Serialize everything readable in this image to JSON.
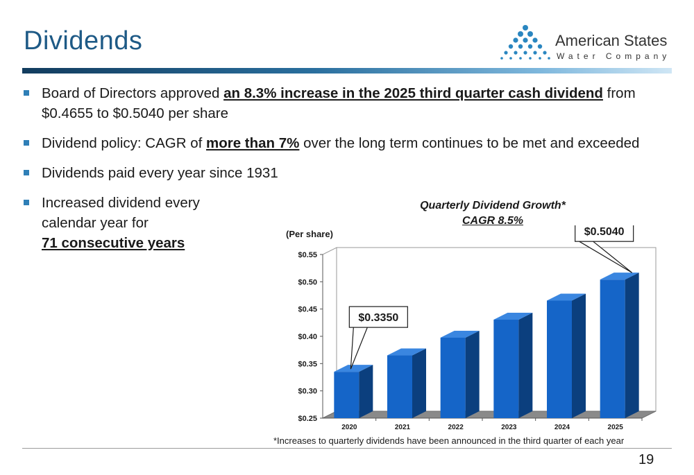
{
  "slide": {
    "title": "Dividends",
    "page_number": "19",
    "footnote": "*Increases to quarterly dividends have been announced in the third quarter of each year"
  },
  "logo": {
    "name": "American States",
    "subtitle": "Water Company",
    "accent_color": "#2a86c0"
  },
  "bullets": [
    {
      "pre": "Board of Directors approved ",
      "bold": "an 8.3% increase in the 2025 third quarter cash dividend",
      "post": " from $0.4655 to $0.5040 per share"
    },
    {
      "pre": "Dividend policy: CAGR of ",
      "bold": "more than 7%",
      "post": " over the long term continues to be met and exceeded"
    },
    {
      "pre": "Dividends paid every year since 1931",
      "bold": "",
      "post": ""
    },
    {
      "pre": "Increased dividend every calendar year for ",
      "bold": "71 consecutive years",
      "post": ""
    }
  ],
  "chart_data": {
    "type": "bar",
    "title": "Quarterly Dividend Growth*",
    "subtitle": "CAGR 8.5%",
    "ylabel": "(Per share)",
    "xlabel": "",
    "categories": [
      "2020",
      "2021",
      "2022",
      "2023",
      "2024",
      "2025"
    ],
    "values": [
      0.335,
      0.365,
      0.3975,
      0.4305,
      0.4655,
      0.504
    ],
    "ylim": [
      0.25,
      0.55
    ],
    "yticks": [
      "$0.25",
      "$0.30",
      "$0.35",
      "$0.40",
      "$0.45",
      "$0.50",
      "$0.55"
    ],
    "callouts": [
      {
        "category": "2020",
        "label": "$0.3350"
      },
      {
        "category": "2025",
        "label": "$0.5040"
      }
    ],
    "grid": false,
    "legend": "none",
    "bar_color": "#1565c8",
    "bar_side_color": "#0b3f7e",
    "bar_top_color": "#3a86e0"
  }
}
